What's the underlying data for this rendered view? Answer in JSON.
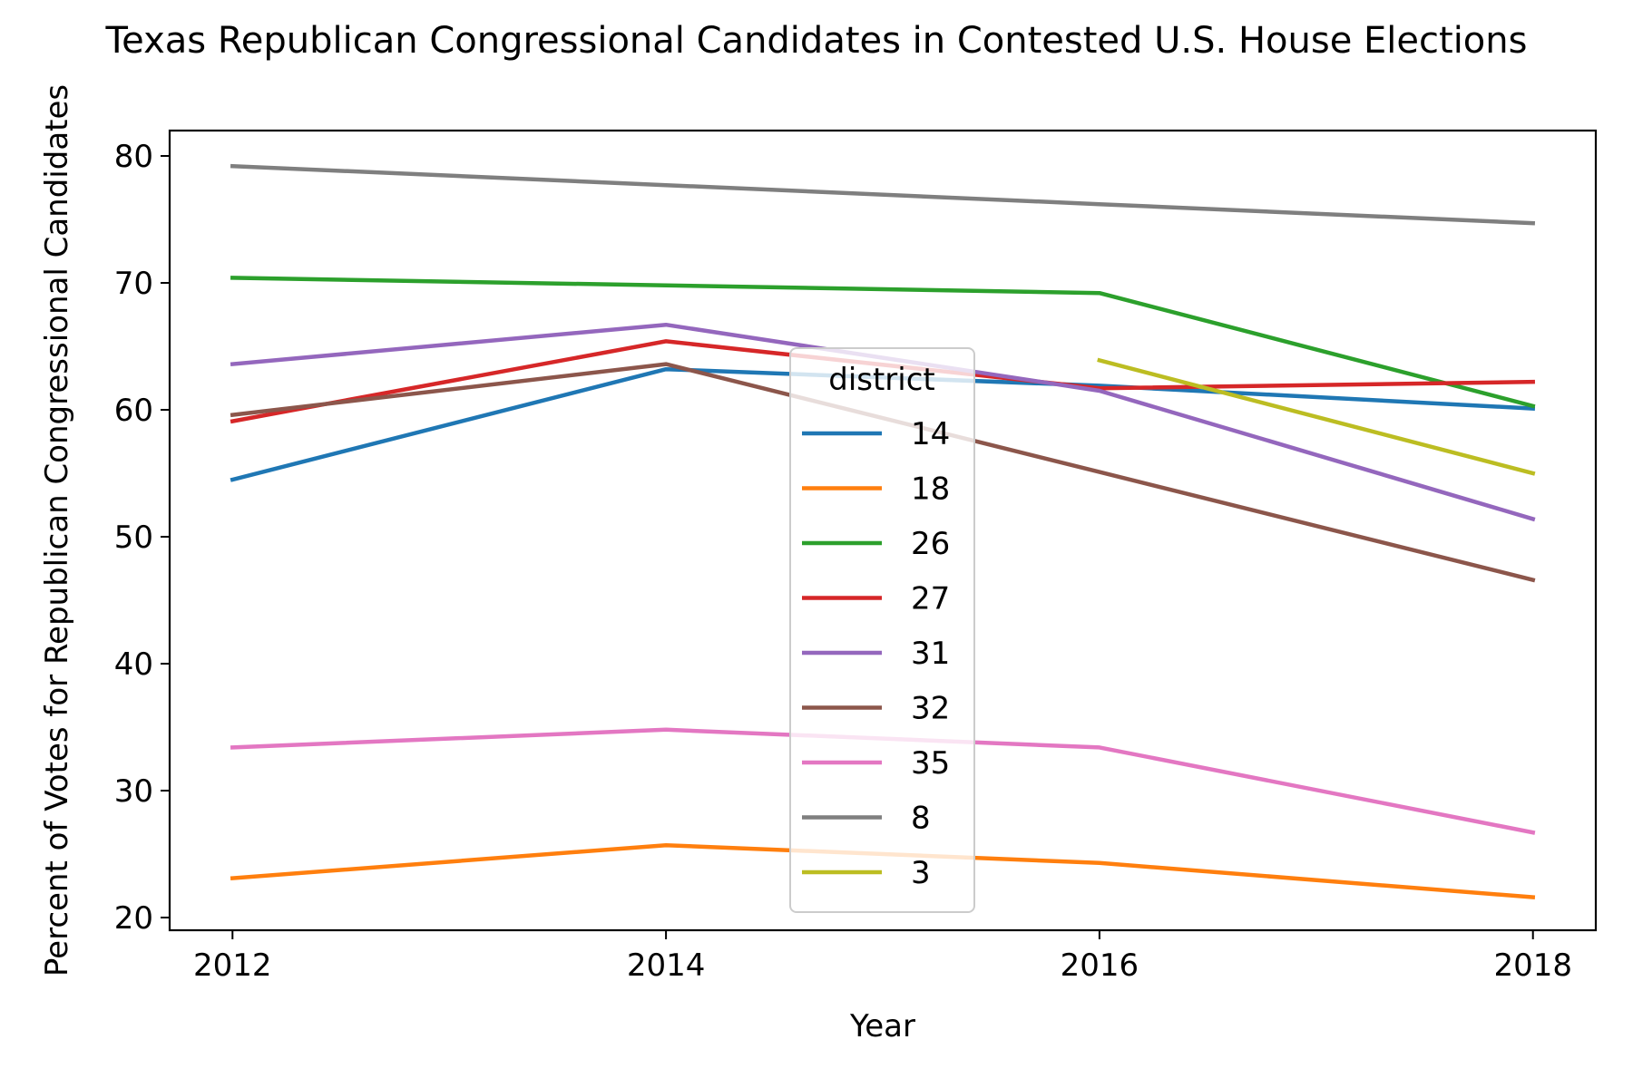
{
  "chart_data": {
    "type": "line",
    "title": "Texas Republican Congressional Candidates in Contested U.S. House Elections",
    "xlabel": "Year",
    "ylabel": "Percent of Votes for Republican Congressional Candidates",
    "x": [
      2012,
      2014,
      2016,
      2018
    ],
    "x_ticks": [
      "2012",
      "2014",
      "2016",
      "2018"
    ],
    "xlim": [
      2011.71,
      2018.29
    ],
    "ylim": [
      19,
      82
    ],
    "y_ticks": [
      "20",
      "30",
      "40",
      "50",
      "60",
      "70",
      "80"
    ],
    "grid": false,
    "legend": {
      "title": "district",
      "placement": "center"
    },
    "series": [
      {
        "name": "14",
        "color": "#1f77b4",
        "values": [
          54.5,
          63.2,
          61.9,
          60.1
        ]
      },
      {
        "name": "18",
        "color": "#ff7f0e",
        "values": [
          23.1,
          25.7,
          24.3,
          21.6
        ]
      },
      {
        "name": "26",
        "color": "#2ca02c",
        "values": [
          70.4,
          69.8,
          69.2,
          60.3
        ]
      },
      {
        "name": "27",
        "color": "#d62728",
        "values": [
          59.1,
          65.4,
          61.7,
          62.2
        ]
      },
      {
        "name": "31",
        "color": "#9467bd",
        "values": [
          63.6,
          66.7,
          61.5,
          51.4
        ]
      },
      {
        "name": "32",
        "color": "#8c564b",
        "values": [
          59.6,
          63.6,
          55.1,
          46.6
        ]
      },
      {
        "name": "35",
        "color": "#e377c2",
        "values": [
          33.4,
          34.8,
          33.4,
          26.7
        ]
      },
      {
        "name": "8",
        "color": "#7f7f7f",
        "values": [
          79.2,
          77.7,
          76.2,
          74.7
        ]
      },
      {
        "name": "3",
        "color": "#bcbd22",
        "values": [
          null,
          null,
          63.9,
          55.0
        ]
      }
    ]
  }
}
